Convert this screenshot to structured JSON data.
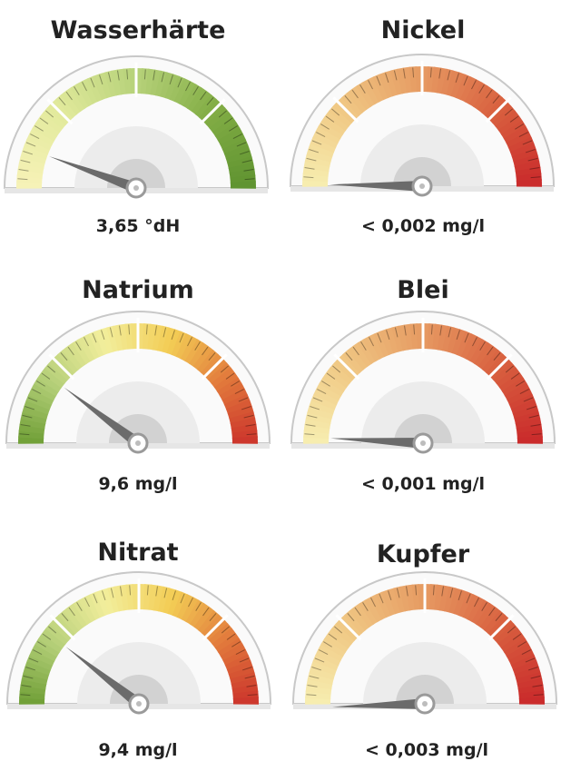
{
  "gauges": [
    {
      "title": "Wasserhärte",
      "reading": "3,65 °dH"
    },
    {
      "title": "Nickel",
      "reading": "< 0,002 mg/l"
    },
    {
      "title": "Natrium",
      "reading": "9,6 mg/l"
    },
    {
      "title": "Blei",
      "reading": "< 0,001 mg/l"
    },
    {
      "title": "Nitrat",
      "reading": "9,4 mg/l"
    },
    {
      "title": "Kupfer",
      "reading": "< 0,003 mg/l"
    }
  ]
}
